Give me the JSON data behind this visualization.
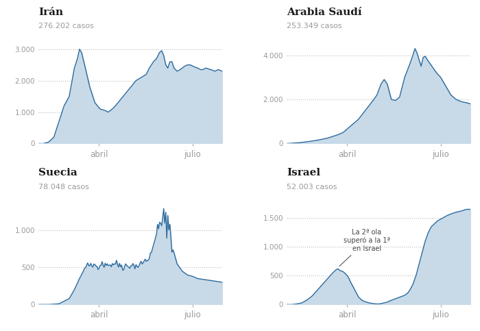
{
  "panels": [
    {
      "title": "Irán",
      "subtitle": "276.202 casos",
      "yticks": [
        0,
        1000,
        2000,
        3000
      ],
      "ylim": [
        0,
        3300
      ],
      "xtick_labels": [
        "abril",
        "julio"
      ],
      "fill_color": "#c8dae8",
      "line_color": "#2e6b9e"
    },
    {
      "title": "Arabia Saudí",
      "subtitle": "253.349 casos",
      "yticks": [
        0,
        2000,
        4000
      ],
      "ylim": [
        0,
        4700
      ],
      "xtick_labels": [
        "abril",
        "julio"
      ],
      "fill_color": "#c8dae8",
      "line_color": "#2e6b9e"
    },
    {
      "title": "Suecia",
      "subtitle": "78.048 casos",
      "yticks": [
        0,
        500,
        1000
      ],
      "ylim": [
        0,
        1400
      ],
      "xtick_labels": [
        "abril",
        "julio"
      ],
      "fill_color": "#c8dae8",
      "line_color": "#2e6b9e"
    },
    {
      "title": "Israel",
      "subtitle": "52.003 casos",
      "yticks": [
        0,
        500,
        1000,
        1500
      ],
      "ylim": [
        0,
        1800
      ],
      "xtick_labels": [
        "abril",
        "julio"
      ],
      "fill_color": "#c8dae8",
      "line_color": "#2e6b9e",
      "annotation": "La 2ª ola\nsuperó a la 1ª\nen Israel"
    }
  ],
  "bg_color": "#ffffff",
  "grid_color": "#bbbbbb",
  "title_color": "#1a1a1a",
  "subtitle_color": "#999999",
  "tick_label_color": "#999999",
  "annotation_color": "#444444",
  "abril_idx": 59,
  "julio_idx": 150,
  "n_points": 180
}
